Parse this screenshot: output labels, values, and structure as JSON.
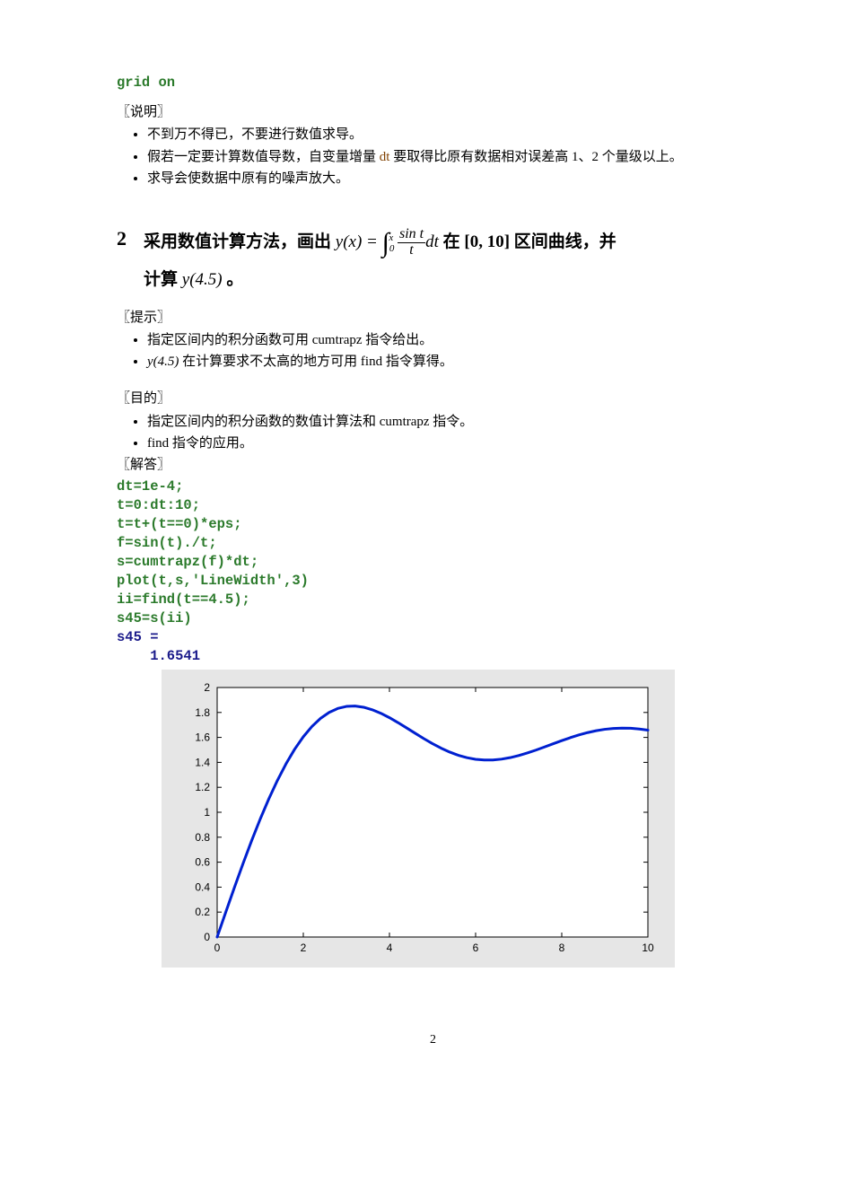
{
  "top_code": "grid on",
  "notes_label": "〖说明〗",
  "notes": [
    "不到万不得已，不要进行数值求导。",
    {
      "pre": "假若一定要计算数值导数，自变量增量 ",
      "mid_tt": "dt",
      "post": " 要取得比原有数据相对误差高 1、2 个量级以上。"
    },
    "求导会使数据中原有的噪声放大。"
  ],
  "problem": {
    "number": "2",
    "part1": "采用数值计算方法，画出",
    "eq_lhs": "y(x) = ",
    "int_lower": "0",
    "int_upper": "x",
    "frac_num": "sin t",
    "frac_den": "t",
    "int_dt": "dt",
    "part2": " 在 [0, 10] 区间曲线，并",
    "line2_pre": "计算 ",
    "line2_y": "y(4.5)",
    "line2_post": " 。"
  },
  "hints_label": "〖提示〗",
  "hints": [
    "指定区间内的积分函数可用 cumtrapz 指令给出。",
    {
      "y": "y(4.5)",
      "rest": " 在计算要求不太高的地方可用 find 指令算得。"
    }
  ],
  "goals_label": "〖目的〗",
  "goals": [
    "指定区间内的积分函数的数值计算法和 cumtrapz 指令。",
    "find 指令的应用。"
  ],
  "answer_label": "〖解答〗",
  "code_lines": [
    "dt=1e-4;",
    "t=0:dt:10;",
    "t=t+(t==0)*eps;",
    "f=sin(t)./t;",
    "s=cumtrapz(f)*dt;",
    "plot(t,s,'LineWidth',3)",
    "ii=find(t==4.5);",
    "s45=s(ii)"
  ],
  "output_lines": [
    "s45 =",
    "    1.6541"
  ],
  "chart": {
    "type": "line",
    "xlim": [
      0,
      10
    ],
    "ylim": [
      0,
      2
    ],
    "xticks": [
      0,
      2,
      4,
      6,
      8,
      10
    ],
    "yticks": [
      0,
      0.2,
      0.4,
      0.6,
      0.8,
      1,
      1.2,
      1.4,
      1.6,
      1.8,
      2
    ],
    "line_color": "#0020d0",
    "line_width": 3,
    "axis_color": "#000000",
    "tick_font_size": 12,
    "background_color": "#e6e6e6",
    "plot_bg": "#ffffff",
    "x": [
      0,
      0.2,
      0.4,
      0.6,
      0.8,
      1.0,
      1.2,
      1.4,
      1.6,
      1.8,
      2.0,
      2.2,
      2.4,
      2.6,
      2.8,
      3.0,
      3.2,
      3.4,
      3.6,
      3.8,
      4.0,
      4.2,
      4.4,
      4.6,
      4.8,
      5.0,
      5.2,
      5.4,
      5.6,
      5.8,
      6.0,
      6.2,
      6.4,
      6.6,
      6.8,
      7.0,
      7.2,
      7.4,
      7.6,
      7.8,
      8.0,
      8.2,
      8.4,
      8.6,
      8.8,
      9.0,
      9.2,
      9.4,
      9.6,
      9.8,
      10.0
    ],
    "y": [
      0,
      0.1996,
      0.3965,
      0.5881,
      0.7721,
      0.9461,
      1.108,
      1.2562,
      1.3892,
      1.5058,
      1.6054,
      1.6876,
      1.7525,
      1.8004,
      1.8321,
      1.8487,
      1.8514,
      1.8419,
      1.8219,
      1.7934,
      1.7582,
      1.7184,
      1.6758,
      1.6325,
      1.59,
      1.5499,
      1.5137,
      1.4823,
      1.4567,
      1.4374,
      1.4247,
      1.4187,
      1.4192,
      1.4258,
      1.4377,
      1.4546,
      1.4751,
      1.4983,
      1.5233,
      1.5489,
      1.5742,
      1.5981,
      1.6198,
      1.6386,
      1.6538,
      1.665,
      1.672,
      1.6747,
      1.6732,
      1.6676,
      1.6583
    ]
  },
  "page_number": "2"
}
